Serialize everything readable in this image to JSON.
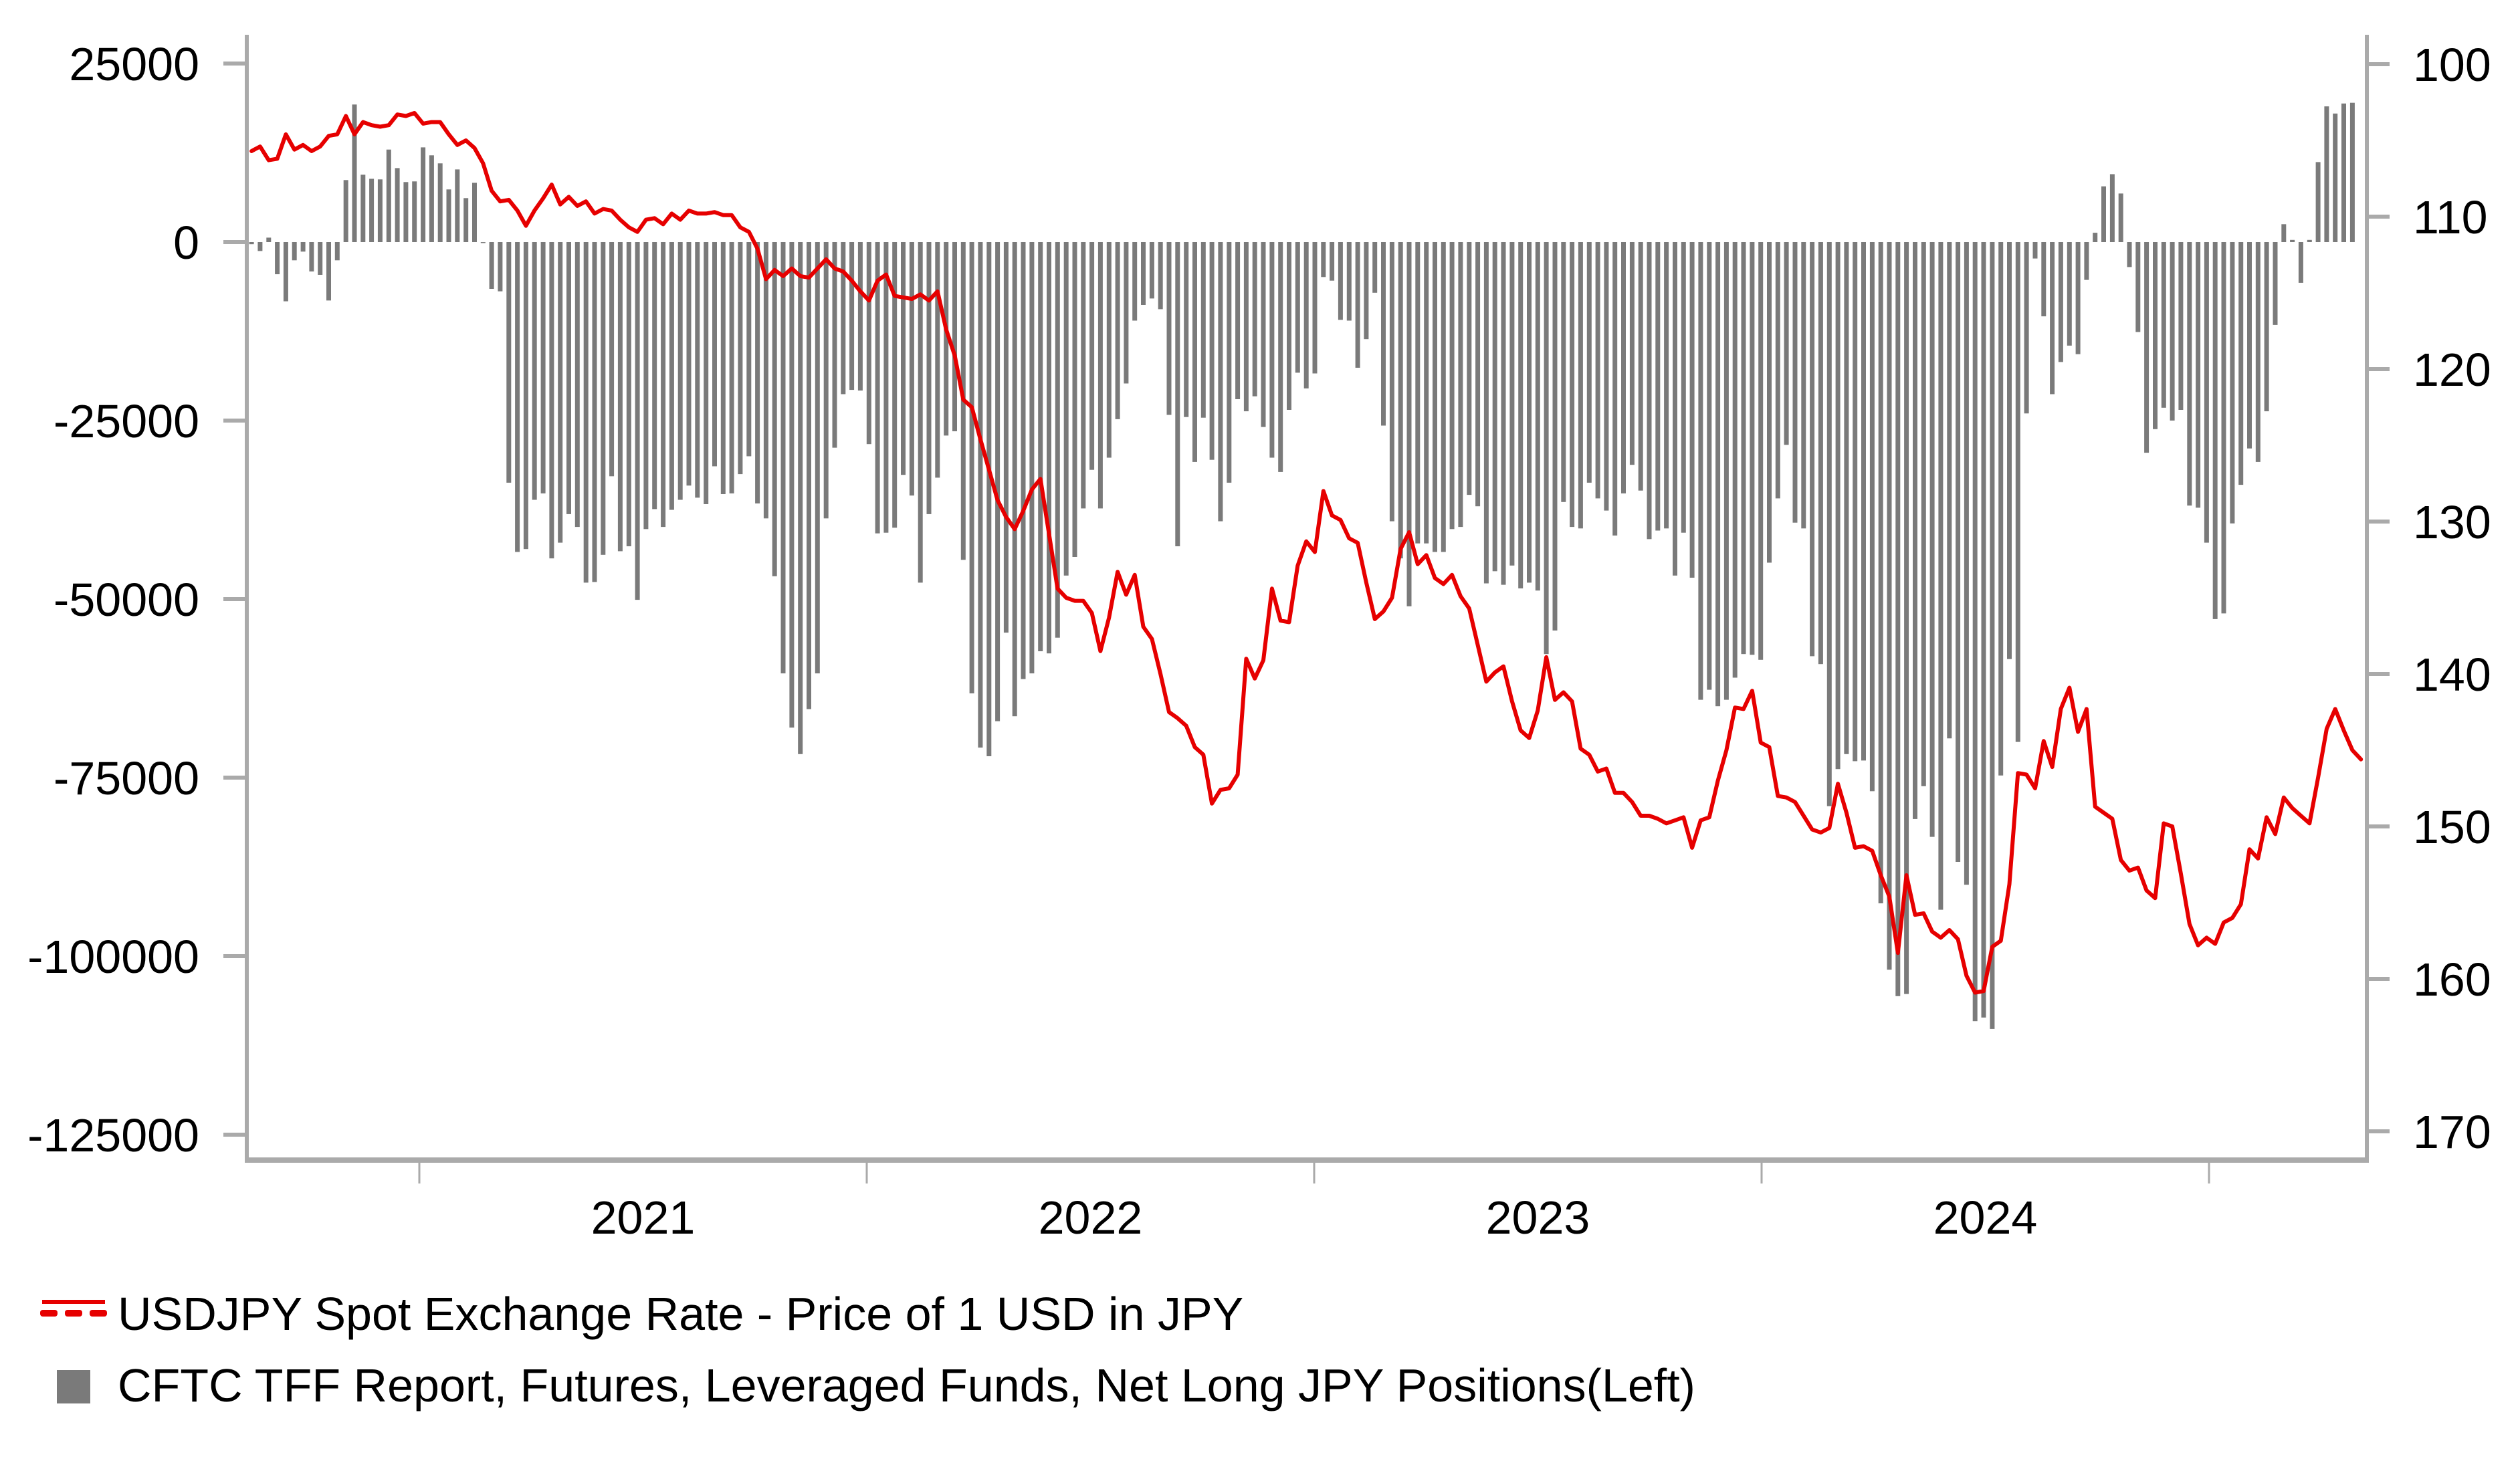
{
  "chart_data": {
    "type": "bar+line",
    "title": "",
    "x_axis": {
      "type": "time",
      "tick_years": [
        2021,
        2022,
        2023,
        2024,
        2025
      ],
      "labels": [
        {
          "text": "2021",
          "year": 2021.5
        },
        {
          "text": "2022",
          "year": 2022.5
        },
        {
          "text": "2023",
          "year": 2023.5
        },
        {
          "text": "2024",
          "year": 2024.5
        }
      ],
      "range_years": [
        2020.61,
        2025.36
      ]
    },
    "y_left": {
      "label": "",
      "range": [
        -125000,
        25000
      ],
      "ticks": [
        25000,
        0,
        -25000,
        -50000,
        -75000,
        -100000,
        -125000
      ],
      "tick_labels": [
        "25000",
        "0",
        "-25000",
        "-50000",
        "-75000",
        "-100000",
        "-125000"
      ]
    },
    "y_right": {
      "label": "",
      "inverted": true,
      "range": [
        100,
        170
      ],
      "ticks": [
        100,
        110,
        120,
        130,
        140,
        150,
        160,
        170
      ],
      "tick_labels": [
        "100",
        "110",
        "120",
        "130",
        "140",
        "150",
        "160",
        "170"
      ]
    },
    "x_start_year": 2020.625,
    "x_step_weeks": 1,
    "series": [
      {
        "name": "CFTC TFF Report, Futures, Leveraged Funds, Net Long JPY Positions(Left)",
        "type": "bar",
        "axis": "left",
        "color": "#7a7a7a",
        "values": [
          -300,
          -1250,
          620,
          -4500,
          -8300,
          -2560,
          -1340,
          -4120,
          -4590,
          -8180,
          -2560,
          8680,
          19260,
          9430,
          8860,
          8770,
          12950,
          10360,
          8400,
          8490,
          13260,
          12140,
          11020,
          7370,
          10170,
          6150,
          8300,
          -100,
          -6550,
          -6900,
          -33700,
          -43400,
          -43000,
          -36100,
          -35200,
          -44300,
          -42100,
          -38100,
          -39900,
          -47700,
          -47600,
          -43800,
          -32800,
          -43300,
          -42600,
          -50100,
          -40200,
          -37400,
          -39900,
          -37500,
          -36100,
          -34100,
          -35800,
          -36700,
          -31400,
          -35300,
          -35200,
          -32500,
          -30000,
          -36600,
          -38700,
          -46800,
          -60400,
          -68000,
          -71700,
          -65400,
          -60400,
          -38700,
          -28800,
          -21300,
          -20700,
          -20800,
          -28300,
          -40800,
          -40700,
          -40000,
          -32600,
          -35500,
          -47700,
          -38100,
          -33000,
          -27100,
          -26500,
          -44500,
          -63200,
          -70800,
          -72000,
          -67100,
          -54700,
          -66400,
          -61200,
          -60400,
          -57300,
          -57600,
          -55400,
          -46700,
          -44100,
          -37300,
          -31900,
          -37300,
          -30200,
          -24800,
          -19800,
          -11000,
          -8800,
          -7900,
          -9400,
          -24200,
          -42600,
          -24500,
          -30800,
          -24600,
          -30500,
          -39100,
          -33700,
          -22000,
          -23700,
          -21600,
          -25900,
          -30200,
          -32200,
          -23500,
          -18300,
          -20500,
          -18400,
          -4900,
          -5400,
          -10900,
          -11000,
          -17600,
          -13600,
          -7100,
          -25700,
          -39100,
          -44300,
          -51000,
          -42200,
          -42200,
          -43400,
          -43400,
          -40200,
          -39900,
          -35400,
          -37000,
          -47800,
          -46100,
          -48000,
          -45300,
          -48500,
          -47700,
          -48800,
          -57700,
          -54400,
          -36400,
          -39900,
          -40100,
          -33700,
          -35900,
          -37600,
          -41100,
          -35200,
          -31200,
          -34800,
          -41600,
          -40400,
          -40100,
          -46700,
          -40700,
          -47000,
          -64100,
          -62700,
          -65000,
          -64100,
          -61000,
          -57700,
          -57800,
          -58500,
          -44900,
          -35900,
          -28400,
          -39300,
          -40100,
          -58000,
          -59100,
          -79000,
          -73800,
          -71700,
          -72700,
          -72600,
          -76900,
          -92600,
          -101900,
          -105600,
          -105300,
          -80800,
          -76200,
          -83300,
          -93500,
          -69500,
          -86800,
          -90000,
          -109100,
          -108600,
          -110200,
          -74700,
          -58400,
          -70000,
          -24000,
          -2300,
          -10400,
          -21300,
          -16800,
          -14500,
          -15700,
          -5300,
          1300,
          7800,
          9500,
          6800,
          -3500,
          -12600,
          -29500,
          -26200,
          -23200,
          -25000,
          -23500,
          -36900,
          -37200,
          -42100,
          -52800,
          -52000,
          -39400,
          -34000,
          -28900,
          -30800,
          -23700,
          -11600,
          2500,
          300,
          -5700,
          300,
          11200,
          19000,
          18000,
          19400,
          19500
        ]
      },
      {
        "name": "USDJPY Spot Exchange Rate - Price of 1 USD in JPY",
        "type": "line",
        "axis": "right",
        "color": "#e60000",
        "values": [
          105.7,
          105.4,
          106.3,
          106.2,
          104.6,
          105.6,
          105.3,
          105.7,
          105.4,
          104.7,
          104.6,
          103.4,
          104.6,
          103.8,
          104.0,
          104.1,
          104.0,
          103.3,
          103.4,
          103.2,
          103.9,
          103.8,
          103.8,
          104.6,
          105.3,
          105.0,
          105.5,
          106.5,
          108.3,
          109.0,
          108.9,
          109.6,
          110.6,
          109.6,
          108.8,
          107.9,
          109.2,
          108.7,
          109.3,
          109.0,
          109.8,
          109.5,
          109.6,
          110.2,
          110.7,
          111.0,
          110.2,
          110.1,
          110.5,
          109.8,
          110.2,
          109.6,
          109.8,
          109.8,
          109.7,
          109.9,
          109.9,
          110.7,
          111.0,
          112.1,
          114.1,
          113.5,
          113.9,
          113.4,
          113.9,
          114.0,
          113.4,
          112.8,
          113.4,
          113.6,
          114.2,
          114.9,
          115.5,
          114.2,
          113.8,
          115.2,
          115.3,
          115.4,
          115.1,
          115.5,
          114.9,
          117.4,
          119.1,
          122.0,
          122.5,
          124.6,
          126.6,
          128.6,
          129.7,
          130.5,
          129.3,
          127.9,
          127.2,
          130.8,
          134.4,
          135.0,
          135.2,
          135.2,
          136.0,
          138.5,
          136.3,
          133.3,
          134.8,
          133.5,
          136.9,
          137.7,
          140.0,
          142.5,
          142.9,
          143.4,
          144.8,
          145.3,
          148.5,
          147.6,
          147.5,
          146.6,
          139.0,
          140.3,
          139.1,
          134.4,
          136.5,
          136.6,
          132.9,
          131.3,
          132.0,
          128.0,
          129.6,
          129.9,
          131.1,
          131.4,
          134.0,
          136.4,
          135.9,
          135.0,
          131.8,
          130.7,
          132.8,
          132.2,
          133.7,
          134.1,
          133.5,
          134.9,
          135.7,
          138.1,
          140.5,
          139.9,
          139.5,
          141.8,
          143.7,
          144.2,
          142.4,
          138.9,
          141.7,
          141.2,
          141.8,
          144.9,
          145.3,
          146.4,
          146.2,
          147.8,
          147.8,
          148.4,
          149.3,
          149.3,
          149.5,
          149.8,
          149.6,
          149.4,
          151.4,
          149.6,
          149.4,
          147.0,
          145.0,
          142.2,
          142.3,
          141.1,
          144.5,
          144.8,
          148.0,
          148.1,
          148.4,
          149.3,
          150.2,
          150.4,
          150.1,
          147.2,
          149.1,
          151.4,
          151.3,
          151.6,
          153.2,
          154.6,
          158.3,
          153.2,
          155.8,
          155.7,
          156.9,
          157.3,
          156.8,
          157.4,
          159.8,
          160.9,
          160.8,
          157.9,
          157.5,
          153.8,
          146.5,
          146.6,
          147.5,
          144.4,
          146.1,
          142.3,
          140.9,
          143.8,
          142.3,
          148.7,
          149.1,
          149.5,
          152.2,
          152.9,
          152.7,
          154.2,
          154.7,
          149.8,
          150.0,
          153.1,
          156.4,
          157.8,
          157.3,
          157.7,
          156.3,
          156.0,
          155.1,
          151.5,
          152.1,
          149.4,
          150.5,
          148.1,
          148.8,
          149.3,
          149.8,
          146.8,
          143.6,
          142.3,
          143.7,
          145.0,
          145.6
        ]
      }
    ],
    "legend": {
      "position": "bottom-left",
      "entries": [
        {
          "label": "USDJPY Spot Exchange Rate - Price of 1 USD in JPY",
          "icon": "red-line-icon",
          "color": "#e60000"
        },
        {
          "label": "CFTC TFF Report, Futures, Leveraged Funds, Net Long JPY Positions(Left)",
          "icon": "gray-square-icon",
          "color": "#7a7a7a"
        }
      ]
    },
    "grid": false
  },
  "colors": {
    "axis": "#aaaaaa",
    "bar": "#7a7a7a",
    "line": "#e60000",
    "text": "#000000"
  }
}
